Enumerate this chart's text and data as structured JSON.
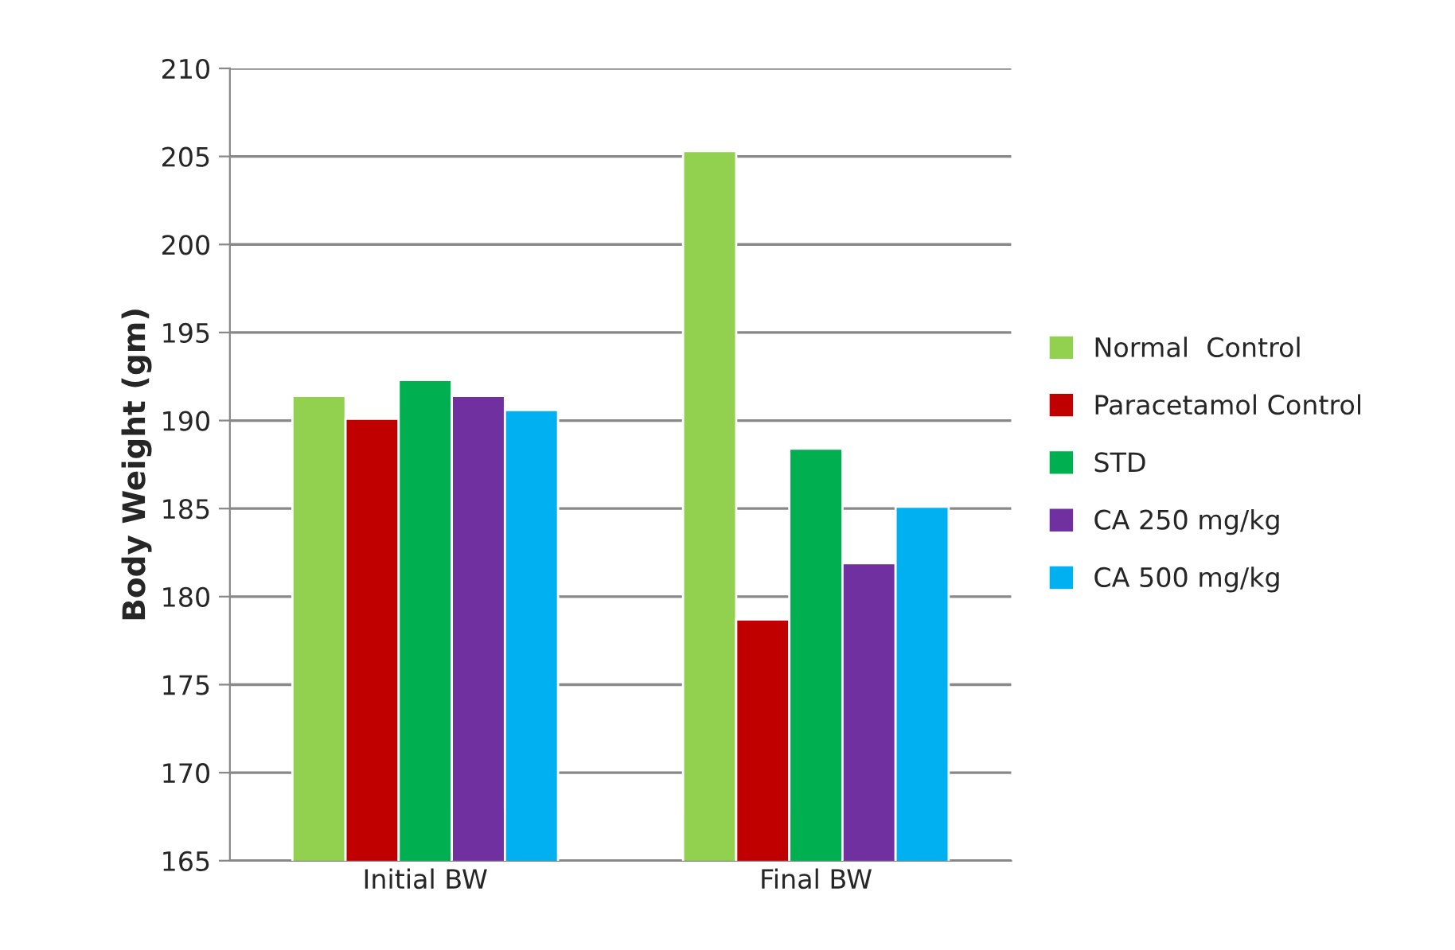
{
  "chart_data": {
    "type": "bar",
    "ylabel": "Body Weight (gm)",
    "categories": [
      "Initial BW",
      "Final BW"
    ],
    "series": [
      {
        "name": "Normal  Control",
        "color": "#92d050",
        "values": [
          191.4,
          205.3
        ]
      },
      {
        "name": "Paracetamol Control",
        "color": "#c00000",
        "values": [
          190.1,
          178.7
        ]
      },
      {
        "name": "STD",
        "color": "#00b050",
        "values": [
          192.3,
          188.4
        ]
      },
      {
        "name": "CA 250 mg/kg",
        "color": "#7030a0",
        "values": [
          191.4,
          181.9
        ]
      },
      {
        "name": "CA 500 mg/kg",
        "color": "#00b0f0",
        "values": [
          190.6,
          185.1
        ]
      }
    ],
    "ylim": [
      165,
      210
    ],
    "yticks": [
      165,
      170,
      175,
      180,
      185,
      190,
      195,
      200,
      205,
      210
    ],
    "grid": "y",
    "legend": "right"
  }
}
